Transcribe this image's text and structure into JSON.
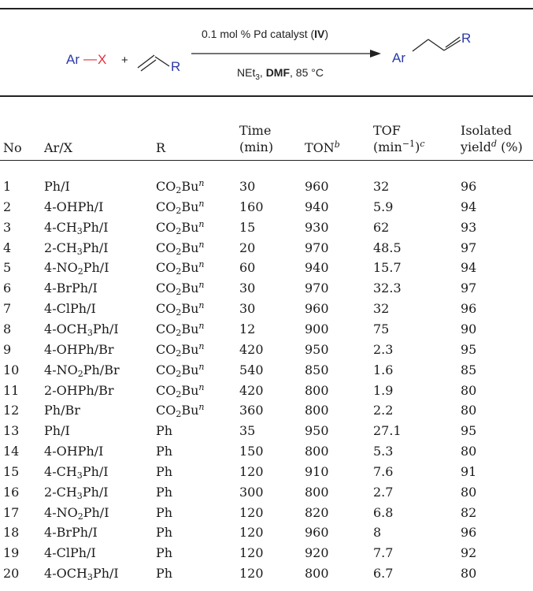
{
  "scheme": {
    "reactant1": {
      "ar": "Ar",
      "dash": "—",
      "x": "X"
    },
    "plus": "+",
    "alkene_r": "R",
    "above_arrow": {
      "prefix": "0.1 mol % Pd catalyst (",
      "bold": "IV",
      "suffix": ")"
    },
    "below_arrow": {
      "reagent": "NEt",
      "reagent_sub": "3",
      "sep": ", ",
      "solvent": "DMF",
      "temp": ", 85 °C"
    },
    "product": {
      "ar": "Ar",
      "r": "R"
    }
  },
  "table": {
    "headers": {
      "no": "No",
      "arx": "Ar/X",
      "r": "R",
      "time_1": "Time",
      "time_2": "(min)",
      "ton": "TON",
      "ton_sup": "b",
      "tof_1": "TOF",
      "tof_2a": "(min",
      "tof_2sup": "−1",
      "tof_2b": ")",
      "tof_2c": "c",
      "yield_1": "Isolated",
      "yield_2a": "yield",
      "yield_2sup": "d",
      "yield_2b": " (%)"
    },
    "rows": [
      {
        "no": "1",
        "ar": "Ph/I",
        "r": "CO2Bun",
        "time": "30",
        "ton": "960",
        "tof": "32",
        "yield": "96"
      },
      {
        "no": "2",
        "ar": "4-OHPh/I",
        "r": "CO2Bun",
        "time": "160",
        "ton": "940",
        "tof": "5.9",
        "yield": "94"
      },
      {
        "no": "3",
        "ar": "4-CH3Ph/I",
        "r": "CO2Bun",
        "time": "15",
        "ton": "930",
        "tof": "62",
        "yield": "93"
      },
      {
        "no": "4",
        "ar": "2-CH3Ph/I",
        "r": "CO2Bun",
        "time": "20",
        "ton": "970",
        "tof": "48.5",
        "yield": "97"
      },
      {
        "no": "5",
        "ar": "4-NO2Ph/I",
        "r": "CO2Bun",
        "time": "60",
        "ton": "940",
        "tof": "15.7",
        "yield": "94"
      },
      {
        "no": "6",
        "ar": "4-BrPh/I",
        "r": "CO2Bun",
        "time": "30",
        "ton": "970",
        "tof": "32.3",
        "yield": "97"
      },
      {
        "no": "7",
        "ar": "4-ClPh/I",
        "r": "CO2Bun",
        "time": "30",
        "ton": "960",
        "tof": "32",
        "yield": "96"
      },
      {
        "no": "8",
        "ar": "4-OCH3Ph/I",
        "r": "CO2Bun",
        "time": "12",
        "ton": "900",
        "tof": "75",
        "yield": "90"
      },
      {
        "no": "9",
        "ar": "4-OHPh/Br",
        "r": "CO2Bun",
        "time": "420",
        "ton": "950",
        "tof": "2.3",
        "yield": "95"
      },
      {
        "no": "10",
        "ar": "4-NO2Ph/Br",
        "r": "CO2Bun",
        "time": "540",
        "ton": "850",
        "tof": "1.6",
        "yield": "85"
      },
      {
        "no": "11",
        "ar": "2-OHPh/Br",
        "r": "CO2Bun",
        "time": "420",
        "ton": "800",
        "tof": "1.9",
        "yield": "80"
      },
      {
        "no": "12",
        "ar": "Ph/Br",
        "r": "CO2Bun",
        "time": "360",
        "ton": "800",
        "tof": "2.2",
        "yield": "80"
      },
      {
        "no": "13",
        "ar": "Ph/I",
        "r": "Ph",
        "time": "35",
        "ton": "950",
        "tof": "27.1",
        "yield": "95"
      },
      {
        "no": "14",
        "ar": "4-OHPh/I",
        "r": "Ph",
        "time": "150",
        "ton": "800",
        "tof": "5.3",
        "yield": "80"
      },
      {
        "no": "15",
        "ar": "4-CH3Ph/I",
        "r": "Ph",
        "time": "120",
        "ton": "910",
        "tof": "7.6",
        "yield": "91"
      },
      {
        "no": "16",
        "ar": "2-CH3Ph/I",
        "r": "Ph",
        "time": "300",
        "ton": "800",
        "tof": "2.7",
        "yield": "80"
      },
      {
        "no": "17",
        "ar": "4-NO2Ph/I",
        "r": "Ph",
        "time": "120",
        "ton": "820",
        "tof": "6.8",
        "yield": "82"
      },
      {
        "no": "18",
        "ar": "4-BrPh/I",
        "r": "Ph",
        "time": "120",
        "ton": "960",
        "tof": "8",
        "yield": "96"
      },
      {
        "no": "19",
        "ar": "4-ClPh/I",
        "r": "Ph",
        "time": "120",
        "ton": "920",
        "tof": "7.7",
        "yield": "92"
      },
      {
        "no": "20",
        "ar": "4-OCH3Ph/I",
        "r": "Ph",
        "time": "120",
        "ton": "800",
        "tof": "6.7",
        "yield": "80"
      }
    ]
  }
}
